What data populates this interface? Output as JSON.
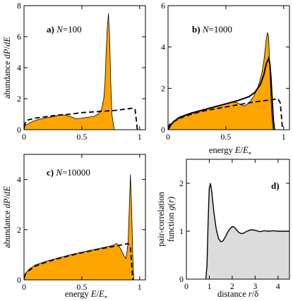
{
  "chart_data": [
    {
      "id": "a",
      "type": "area",
      "panel_label": "a)",
      "panel_label_var": "N",
      "panel_label_value": "=100",
      "xlabel": "",
      "ylabel": "abundance dP/dE",
      "xlim": [
        0,
        1.05
      ],
      "ylim": [
        0,
        8
      ],
      "xticks": [
        "0",
        "0.5",
        "1"
      ],
      "xtick_values": [
        0,
        0.5,
        1
      ],
      "yticks": [
        "0",
        "2",
        "4",
        "6",
        "8"
      ],
      "ytick_values": [
        0,
        2,
        4,
        6,
        8
      ],
      "fill_color": "#ffa500",
      "series": [
        {
          "style": "filled",
          "x": [
            0,
            0.01,
            0.03,
            0.05,
            0.08,
            0.12,
            0.18,
            0.25,
            0.3,
            0.35,
            0.4,
            0.45,
            0.5,
            0.55,
            0.6,
            0.64,
            0.67,
            0.69,
            0.7,
            0.71,
            0.72,
            0.73,
            0.74,
            0.75,
            0.76,
            0.78
          ],
          "y": [
            0,
            0.3,
            0.35,
            0.45,
            0.55,
            0.65,
            0.75,
            0.85,
            0.92,
            0.95,
            0.85,
            0.7,
            0.75,
            0.8,
            0.85,
            1.0,
            1.3,
            2.0,
            3.0,
            5.0,
            6.5,
            7.5,
            6.0,
            3.0,
            1.0,
            0
          ]
        },
        {
          "style": "dashed",
          "x": [
            0,
            0.02,
            0.1,
            0.2,
            0.3,
            0.4,
            0.5,
            0.6,
            0.7,
            0.8,
            0.9,
            0.95,
            0.96,
            0.97,
            0.98
          ],
          "y": [
            0.2,
            0.6,
            0.75,
            0.85,
            0.95,
            1.0,
            1.1,
            1.15,
            1.2,
            1.25,
            1.35,
            1.4,
            1.3,
            0.7,
            0
          ]
        }
      ]
    },
    {
      "id": "b",
      "type": "area",
      "panel_label": "b)",
      "panel_label_var": "N",
      "panel_label_value": "=1000",
      "xlabel": "energy E/E*",
      "ylabel": "",
      "xlim": [
        0,
        1.05
      ],
      "ylim": [
        0,
        6
      ],
      "xticks": [
        "0",
        "0.5",
        "1"
      ],
      "xtick_values": [
        0,
        0.5,
        1
      ],
      "yticks": [
        "0",
        "2",
        "4",
        "6"
      ],
      "ytick_values": [
        0,
        2,
        4,
        6
      ],
      "fill_color": "#ffa500",
      "series": [
        {
          "style": "filled",
          "x": [
            0,
            0.02,
            0.05,
            0.1,
            0.2,
            0.3,
            0.4,
            0.5,
            0.55,
            0.6,
            0.63,
            0.66,
            0.7,
            0.74,
            0.78,
            0.81,
            0.83,
            0.85,
            0.86,
            0.87,
            0.88,
            0.89,
            0.9,
            0.91
          ],
          "y": [
            0,
            0.2,
            0.4,
            0.6,
            0.8,
            0.95,
            1.1,
            1.25,
            1.35,
            1.3,
            1.2,
            1.15,
            1.3,
            1.6,
            2.1,
            2.7,
            3.4,
            4.4,
            4.7,
            4.5,
            3.0,
            1.5,
            0.5,
            0
          ]
        },
        {
          "style": "solid-bold",
          "x": [
            0,
            0.02,
            0.05,
            0.1,
            0.2,
            0.3,
            0.4,
            0.5,
            0.6,
            0.7,
            0.75,
            0.8,
            0.83,
            0.85,
            0.87,
            0.88,
            0.89,
            0.9,
            0.91,
            0.92
          ],
          "y": [
            0,
            0.2,
            0.4,
            0.6,
            0.8,
            0.95,
            1.1,
            1.25,
            1.4,
            1.6,
            1.8,
            2.2,
            2.7,
            3.2,
            3.45,
            3.2,
            2.5,
            1.5,
            0.5,
            0
          ]
        },
        {
          "style": "dashed",
          "x": [
            0,
            0.02,
            0.1,
            0.2,
            0.3,
            0.4,
            0.5,
            0.6,
            0.7,
            0.8,
            0.9,
            0.95,
            0.97,
            0.98,
            0.99
          ],
          "y": [
            0.1,
            0.3,
            0.55,
            0.75,
            0.9,
            1.0,
            1.1,
            1.2,
            1.3,
            1.38,
            1.45,
            1.5,
            1.3,
            0.7,
            0
          ]
        }
      ]
    },
    {
      "id": "c",
      "type": "area",
      "panel_label": "c)",
      "panel_label_var": "N",
      "panel_label_value": "=10000",
      "xlabel": "energy E/E*",
      "ylabel": "abundance dP/dE",
      "xlim": [
        0,
        1.05
      ],
      "ylim": [
        0,
        5
      ],
      "xticks": [
        "0",
        "0.5",
        "1"
      ],
      "xtick_values": [
        0,
        0.5,
        1
      ],
      "yticks": [
        "0",
        "2",
        "4"
      ],
      "ytick_values": [
        0,
        2,
        4
      ],
      "fill_color": "#ffa500",
      "series": [
        {
          "style": "filled",
          "x": [
            0,
            0.02,
            0.05,
            0.1,
            0.2,
            0.3,
            0.4,
            0.5,
            0.6,
            0.7,
            0.75,
            0.78,
            0.8,
            0.82,
            0.84,
            0.86,
            0.88,
            0.89,
            0.9,
            0.91,
            0.92,
            0.93,
            0.94,
            0.95
          ],
          "y": [
            0,
            0.3,
            0.45,
            0.6,
            0.75,
            0.88,
            1.0,
            1.1,
            1.2,
            1.3,
            1.35,
            1.4,
            1.45,
            1.35,
            1.2,
            1.0,
            0.85,
            1.1,
            1.5,
            2.8,
            4.2,
            3.0,
            1.0,
            0
          ]
        },
        {
          "style": "dashed",
          "x": [
            0,
            0.02,
            0.1,
            0.2,
            0.3,
            0.4,
            0.5,
            0.6,
            0.7,
            0.8,
            0.85,
            0.9,
            0.92,
            0.93,
            0.94
          ],
          "y": [
            0.1,
            0.3,
            0.55,
            0.72,
            0.85,
            0.97,
            1.08,
            1.18,
            1.27,
            1.35,
            1.4,
            1.45,
            1.3,
            0.7,
            0
          ]
        }
      ]
    },
    {
      "id": "d",
      "type": "area",
      "panel_label": "d)",
      "xlabel": "distance r/δ",
      "ylabel": "pair-correlation function g(r)",
      "ylabel_lines": [
        "pair-correlation",
        "function g(r)"
      ],
      "xlim": [
        0,
        4.5
      ],
      "ylim": [
        0,
        2.5
      ],
      "xticks": [
        "0",
        "1",
        "2",
        "3",
        "4"
      ],
      "xtick_values": [
        0,
        1,
        2,
        3,
        4
      ],
      "yticks": [
        "0",
        "1",
        "2"
      ],
      "ytick_values": [
        0,
        1,
        2
      ],
      "fill_color": "#dcdcdc",
      "series": [
        {
          "style": "filled-line",
          "x": [
            0.85,
            0.9,
            0.95,
            1.0,
            1.05,
            1.1,
            1.2,
            1.3,
            1.4,
            1.5,
            1.6,
            1.7,
            1.8,
            1.9,
            2.0,
            2.1,
            2.2,
            2.3,
            2.4,
            2.5,
            2.6,
            2.8,
            3.0,
            3.2,
            3.4,
            3.6,
            3.8,
            4.0,
            4.2,
            4.5
          ],
          "y": [
            0,
            0.3,
            1.2,
            1.9,
            2.0,
            1.85,
            1.4,
            1.05,
            0.85,
            0.78,
            0.8,
            0.88,
            0.98,
            1.05,
            1.1,
            1.08,
            1.02,
            0.97,
            0.95,
            0.96,
            0.99,
            1.03,
            1.02,
            0.99,
            1.01,
            1.0,
            1.01,
            1.0,
            1.0,
            1.0
          ]
        }
      ]
    }
  ]
}
